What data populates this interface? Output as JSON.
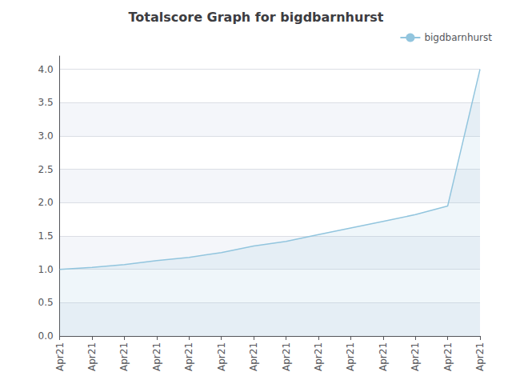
{
  "chart_data": {
    "type": "line",
    "title": "Totalscore Graph for bigdbarnhurst",
    "categories": [
      "Apr21",
      "Apr21",
      "Apr21",
      "Apr21",
      "Apr21",
      "Apr21",
      "Apr21",
      "Apr21",
      "Apr21",
      "Apr21",
      "Apr21",
      "Apr21",
      "Apr21",
      "Apr21"
    ],
    "series": [
      {
        "name": "bigdbarnhurst",
        "color": "#92c5de",
        "values": [
          1.0,
          1.03,
          1.07,
          1.13,
          1.18,
          1.25,
          1.35,
          1.42,
          1.52,
          1.62,
          1.72,
          1.82,
          1.95,
          4.0
        ]
      }
    ],
    "ylim": [
      0.0,
      4.2
    ],
    "yticks": [
      {
        "value": 0.0,
        "label": "0.0"
      },
      0.5,
      {
        "value": 1.0,
        "label": "1.0"
      },
      1.5,
      {
        "value": 2.0,
        "label": "2.0"
      },
      2.5,
      {
        "value": 3.0,
        "label": "3.0"
      },
      3.5,
      {
        "value": 4.0,
        "label": "4.0"
      }
    ],
    "grid": true,
    "legend": "upper right"
  }
}
